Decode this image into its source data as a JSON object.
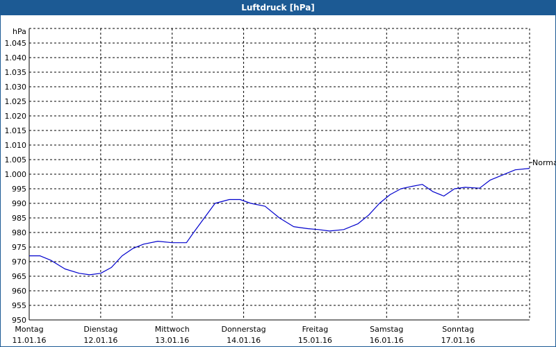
{
  "chart_data": {
    "type": "line",
    "title": "Luftdruck [hPa]",
    "ylabel": "hPa",
    "ylim": [
      950,
      1050
    ],
    "yticks": [
      950,
      955,
      960,
      965,
      970,
      975,
      980,
      985,
      990,
      995,
      1000,
      1005,
      1010,
      1015,
      1020,
      1025,
      1030,
      1035,
      1040,
      1045
    ],
    "ytick_labels": [
      "950",
      "955",
      "960",
      "965",
      "970",
      "975",
      "980",
      "985",
      "990",
      "995",
      "1.000",
      "1.005",
      "1.010",
      "1.015",
      "1.020",
      "1.025",
      "1.030",
      "1.035",
      "1.040",
      "1.045"
    ],
    "xlim": [
      0,
      7
    ],
    "xticks": [
      {
        "day": "Montag",
        "date": "11.01.16",
        "x": 0
      },
      {
        "day": "Dienstag",
        "date": "12.01.16",
        "x": 1
      },
      {
        "day": "Mittwoch",
        "date": "13.01.16",
        "x": 2
      },
      {
        "day": "Donnerstag",
        "date": "14.01.16",
        "x": 3
      },
      {
        "day": "Freitag",
        "date": "15.01.16",
        "x": 4
      },
      {
        "day": "Samstag",
        "date": "16.01.16",
        "x": 5
      },
      {
        "day": "Sonntag",
        "date": "17.01.16",
        "x": 6
      }
    ],
    "reference_label": "Normal",
    "reference_value": 1004,
    "grid": true,
    "series": [
      {
        "color": "#0000cc",
        "x": [
          0.0,
          0.15,
          0.3,
          0.5,
          0.7,
          0.85,
          1.0,
          1.15,
          1.3,
          1.45,
          1.6,
          1.8,
          2.0,
          2.2,
          2.3,
          2.45,
          2.6,
          2.8,
          2.95,
          3.1,
          3.3,
          3.5,
          3.7,
          3.9,
          4.05,
          4.2,
          4.4,
          4.6,
          4.75,
          4.9,
          5.05,
          5.2,
          5.35,
          5.5,
          5.65,
          5.8,
          5.95,
          6.1,
          6.3,
          6.45,
          6.6,
          6.8,
          7.0
        ],
        "y": [
          972,
          972,
          970.5,
          967.5,
          966,
          965.5,
          966,
          968,
          972,
          974.5,
          976,
          977,
          976.5,
          976.5,
          980,
          985,
          990,
          991.3,
          991.3,
          990,
          989,
          985,
          982,
          981.3,
          981,
          980.5,
          981,
          983,
          986,
          990,
          993,
          995,
          995.8,
          996.5,
          994,
          992.5,
          995,
          995.5,
          995.2,
          998,
          999.5,
          1001.5,
          1002
        ]
      }
    ]
  }
}
